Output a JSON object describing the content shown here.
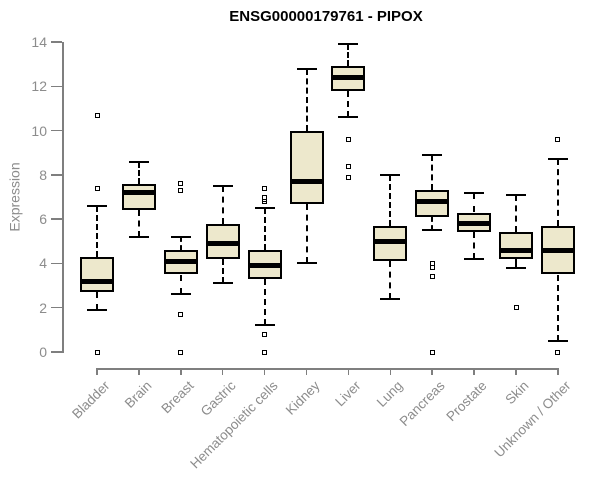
{
  "header": {
    "title": "ENSG00000179761 - PIPOX"
  },
  "chart_data": {
    "type": "boxplot",
    "title": "ENSG00000179761 - PIPOX",
    "ylabel": "Expression",
    "xlabel": "",
    "ylim": [
      0,
      14
    ],
    "yticks": [
      0,
      2,
      4,
      6,
      8,
      10,
      12,
      14
    ],
    "grid": false,
    "legend": "none",
    "categories": [
      "Bladder",
      "Brain",
      "Breast",
      "Gastric",
      "Hematopoietic cells",
      "Kidney",
      "Liver",
      "Lung",
      "Pancreas",
      "Prostate",
      "Skin",
      "Unknown / Other"
    ],
    "series": [
      {
        "name": "Bladder",
        "whisker_low": 1.9,
        "q1": 2.7,
        "median": 3.2,
        "q3": 4.3,
        "whisker_high": 6.6,
        "outliers": [
          0,
          7.4,
          10.7
        ]
      },
      {
        "name": "Brain",
        "whisker_low": 5.2,
        "q1": 6.4,
        "median": 7.2,
        "q3": 7.6,
        "whisker_high": 8.6,
        "outliers": []
      },
      {
        "name": "Breast",
        "whisker_low": 2.6,
        "q1": 3.5,
        "median": 4.1,
        "q3": 4.6,
        "whisker_high": 5.2,
        "outliers": [
          0,
          1.7,
          7.3,
          7.6
        ]
      },
      {
        "name": "Gastric",
        "whisker_low": 3.1,
        "q1": 4.2,
        "median": 4.9,
        "q3": 5.8,
        "whisker_high": 7.5,
        "outliers": []
      },
      {
        "name": "Hematopoietic cells",
        "whisker_low": 1.2,
        "q1": 3.3,
        "median": 3.9,
        "q3": 4.6,
        "whisker_high": 6.5,
        "outliers": [
          0,
          0.8,
          6.8,
          6.9,
          7.0,
          7.4
        ]
      },
      {
        "name": "Kidney",
        "whisker_low": 4.0,
        "q1": 6.7,
        "median": 7.7,
        "q3": 10.0,
        "whisker_high": 12.8,
        "outliers": []
      },
      {
        "name": "Liver",
        "whisker_low": 10.6,
        "q1": 11.8,
        "median": 12.4,
        "q3": 12.9,
        "whisker_high": 13.9,
        "outliers": [
          7.9,
          8.4,
          9.6
        ]
      },
      {
        "name": "Lung",
        "whisker_low": 2.4,
        "q1": 4.1,
        "median": 5.0,
        "q3": 5.7,
        "whisker_high": 8.0,
        "outliers": []
      },
      {
        "name": "Pancreas",
        "whisker_low": 5.5,
        "q1": 6.1,
        "median": 6.8,
        "q3": 7.3,
        "whisker_high": 8.9,
        "outliers": [
          0,
          3.4,
          3.8,
          4.0
        ]
      },
      {
        "name": "Prostate",
        "whisker_low": 4.2,
        "q1": 5.4,
        "median": 5.8,
        "q3": 6.3,
        "whisker_high": 7.2,
        "outliers": []
      },
      {
        "name": "Skin",
        "whisker_low": 3.8,
        "q1": 4.2,
        "median": 4.6,
        "q3": 5.4,
        "whisker_high": 7.1,
        "outliers": [
          2.0
        ]
      },
      {
        "name": "Unknown / Other",
        "whisker_low": 0.5,
        "q1": 3.5,
        "median": 4.6,
        "q3": 5.7,
        "whisker_high": 8.7,
        "outliers": [
          0,
          9.6
        ]
      }
    ],
    "colors": {
      "box_fill": "#EDE8CC",
      "box_border": "#000000",
      "median": "#000000",
      "whisker": "#000000",
      "outlier": "#000000",
      "axis": "#7F7F7F",
      "tick_text": "#8C8C8C",
      "title_text": "#000000",
      "background": "#FFFFFF"
    }
  }
}
